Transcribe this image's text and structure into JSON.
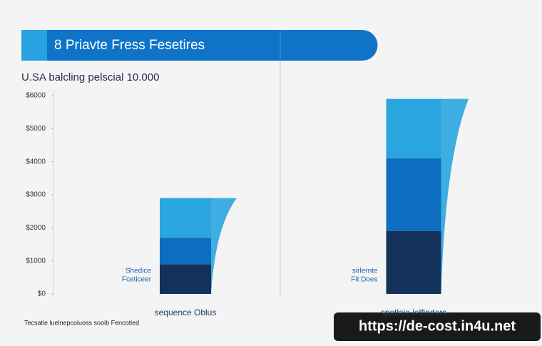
{
  "chart_data": {
    "type": "stacked-bar",
    "title": "8 Priavte Fress Fesetires",
    "subtitle": "U.SA balcling pelscial 10.000",
    "categories": [
      "sequence Oblus",
      "spetlaie lelfinders"
    ],
    "series": [
      {
        "color": "#13325a",
        "values": [
          900,
          1900
        ]
      },
      {
        "color": "#0d6ec0",
        "values": [
          800,
          2200
        ]
      },
      {
        "color": "#2aa5e0",
        "values": [
          1200,
          1800
        ]
      }
    ],
    "annotations": [
      "Shedice",
      "Fceticeer",
      "sirlernte",
      "Fit Does"
    ],
    "ylim": [
      0,
      6000
    ],
    "yticks": [
      {
        "value": 0,
        "label": "$0"
      },
      {
        "value": 1000,
        "label": "$1000"
      },
      {
        "value": 2000,
        "label": "$2000"
      },
      {
        "value": 3000,
        "label": "$3000"
      },
      {
        "value": 4000,
        "label": "$4000"
      },
      {
        "value": 5000,
        "label": "$5000"
      },
      {
        "value": 6000,
        "label": "$6000"
      }
    ],
    "footnote": "Tecsatie luelnepcoiuoss sooib Fencotied",
    "watermark": "https://de-cost.in4u.net"
  }
}
